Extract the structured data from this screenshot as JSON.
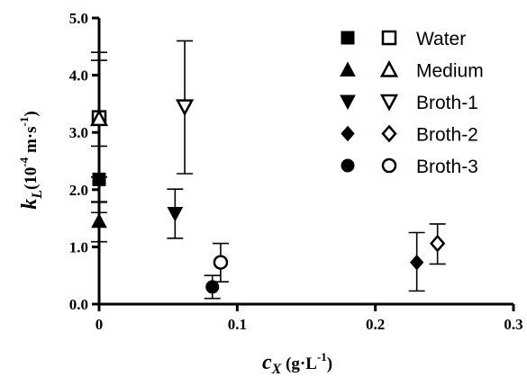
{
  "chart_data": {
    "type": "scatter",
    "xlabel": {
      "main": "c",
      "sub": "X",
      "unit_prefix": " (g·L",
      "unit_sup": "-1",
      "unit_suffix": ")"
    },
    "ylabel": {
      "main": "k",
      "sub": "L",
      "unit_prefix": "(10",
      "unit_sup1": "-4",
      "unit_mid": " m·s",
      "unit_sup2": "-1",
      "unit_suffix": ")"
    },
    "xlim": [
      0,
      0.3
    ],
    "ylim": [
      0,
      5.0
    ],
    "x_ticks": [
      0,
      0.1,
      0.2,
      0.3
    ],
    "x_tick_labels": [
      "0",
      "0.1",
      "0.2",
      "0.3"
    ],
    "y_ticks": [
      0,
      1,
      2,
      3,
      4,
      5
    ],
    "y_tick_labels": [
      "0.0",
      "1.0",
      "2.0",
      "3.0",
      "4.0",
      "5.0"
    ],
    "grid": false,
    "legend_position": "top-right",
    "series": [
      {
        "name": "Water",
        "filled": {
          "marker": "square",
          "x": 0.0,
          "y": 2.18,
          "err_low": 1.78,
          "err_high": 2.76
        },
        "open": {
          "marker": "square",
          "x": 0.0,
          "y": 3.26,
          "err_low": 1.6,
          "err_high": 4.4
        }
      },
      {
        "name": "Medium",
        "filled": {
          "marker": "triangle-up",
          "x": 0.0,
          "y": 1.45,
          "err_low": 1.09,
          "err_high": 1.79
        },
        "open": {
          "marker": "triangle-up",
          "x": 0.0,
          "y": 3.24,
          "err_low": 2.22,
          "err_high": 4.26
        }
      },
      {
        "name": "Broth-1",
        "filled": {
          "marker": "triangle-down",
          "x": 0.055,
          "y": 1.58,
          "err_low": 1.15,
          "err_high": 2.01
        },
        "open": {
          "marker": "triangle-down",
          "x": 0.062,
          "y": 3.45,
          "err_low": 2.28,
          "err_high": 4.6
        }
      },
      {
        "name": "Broth-2",
        "filled": {
          "marker": "diamond",
          "x": 0.23,
          "y": 0.73,
          "err_low": 0.23,
          "err_high": 1.25
        },
        "open": {
          "marker": "diamond",
          "x": 0.245,
          "y": 1.06,
          "err_low": 0.7,
          "err_high": 1.4
        }
      },
      {
        "name": "Broth-3",
        "filled": {
          "marker": "circle",
          "x": 0.082,
          "y": 0.3,
          "err_low": 0.1,
          "err_high": 0.5
        },
        "open": {
          "marker": "circle",
          "x": 0.088,
          "y": 0.73,
          "err_low": 0.39,
          "err_high": 1.06
        }
      }
    ]
  }
}
